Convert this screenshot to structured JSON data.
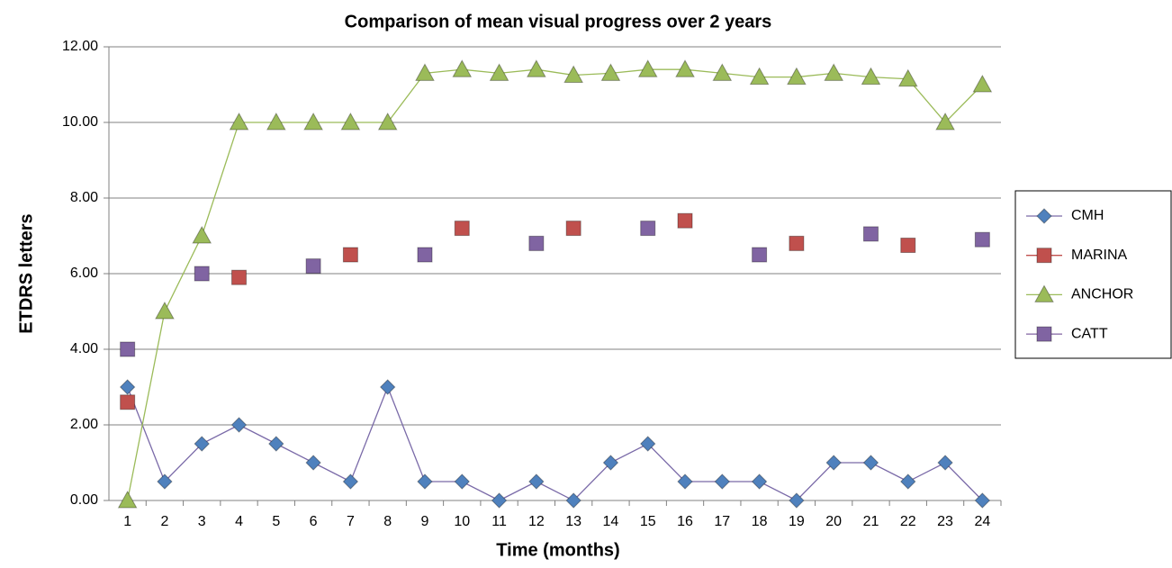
{
  "chart_data": {
    "type": "line",
    "title": "Comparison of mean visual progress over 2 years",
    "x_label": "Time (months)",
    "y_label": "ETDRS letters",
    "categories": [
      "1",
      "2",
      "3",
      "4",
      "5",
      "6",
      "7",
      "8",
      "9",
      "10",
      "11",
      "12",
      "13",
      "14",
      "15",
      "16",
      "17",
      "18",
      "19",
      "20",
      "21",
      "22",
      "23",
      "24"
    ],
    "ylim": [
      0,
      12
    ],
    "yticks": [
      {
        "value": 0,
        "label": "0.00"
      },
      {
        "value": 2,
        "label": "2.00"
      },
      {
        "value": 4,
        "label": "4.00"
      },
      {
        "value": 6,
        "label": "6.00"
      },
      {
        "value": 8,
        "label": "8.00"
      },
      {
        "value": 10,
        "label": "10.00"
      },
      {
        "value": 12,
        "label": "12.00"
      }
    ],
    "grid": true,
    "legend": "right",
    "series": [
      {
        "name": "CMH",
        "color": "#4f81bd",
        "line_color": "#7a6aa8",
        "marker": "diamond",
        "line": true,
        "values": [
          3,
          0.5,
          1.5,
          2,
          1.5,
          1,
          0.5,
          3,
          0.5,
          0.5,
          0,
          0.5,
          0,
          1,
          1.5,
          0.5,
          0.5,
          0.5,
          0,
          1,
          1,
          0.5,
          1,
          0
        ]
      },
      {
        "name": "MARINA",
        "color": "#c0504d",
        "marker": "square",
        "line": false,
        "values": [
          2.6,
          null,
          null,
          5.9,
          null,
          null,
          6.5,
          null,
          null,
          7.2,
          null,
          null,
          7.2,
          null,
          null,
          7.4,
          null,
          null,
          6.8,
          null,
          null,
          6.75,
          null,
          null
        ]
      },
      {
        "name": "ANCHOR",
        "color": "#9bbb59",
        "marker": "triangle",
        "line": true,
        "values": [
          0,
          5,
          7,
          10,
          10,
          10,
          10,
          10,
          11.3,
          11.4,
          11.3,
          11.4,
          11.25,
          11.3,
          11.4,
          11.4,
          11.3,
          11.2,
          11.2,
          11.3,
          11.2,
          11.15,
          10,
          11
        ]
      },
      {
        "name": "CATT",
        "color": "#8064a2",
        "marker": "square",
        "line": false,
        "values": [
          4,
          null,
          6,
          null,
          null,
          6.2,
          null,
          null,
          6.5,
          null,
          null,
          6.8,
          null,
          null,
          7.2,
          null,
          null,
          6.5,
          null,
          null,
          7.05,
          null,
          null,
          6.9
        ]
      }
    ]
  }
}
